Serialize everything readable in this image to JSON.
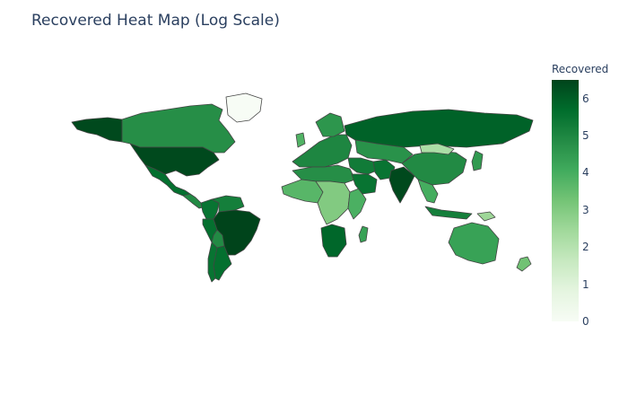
{
  "title": "Recovered Heat Map (Log Scale)",
  "colorbar": {
    "title": "Recovered",
    "ticks": [
      "0",
      "1",
      "2",
      "3",
      "4",
      "5",
      "6"
    ],
    "range": [
      0,
      6.5
    ],
    "colorscale": [
      "#f7fcf5",
      "#e5f5e0",
      "#c7e9c0",
      "#a1d99b",
      "#74c476",
      "#41ab5d",
      "#238b45",
      "#006d2c",
      "#00441b"
    ]
  },
  "border_color": "#444444",
  "regions": [
    {
      "name": "Alaska",
      "value": 6.4
    },
    {
      "name": "Canada",
      "value": 4.8
    },
    {
      "name": "Greenland",
      "value": 0
    },
    {
      "name": "USA",
      "value": 6.4
    },
    {
      "name": "Mexico",
      "value": 5.6
    },
    {
      "name": "Central America",
      "value": 4.9
    },
    {
      "name": "Colombia",
      "value": 5.5
    },
    {
      "name": "Venezuela",
      "value": 5.2
    },
    {
      "name": "Peru",
      "value": 5.6
    },
    {
      "name": "Brazil",
      "value": 6.5
    },
    {
      "name": "Bolivia",
      "value": 4.9
    },
    {
      "name": "Argentina",
      "value": 5.6
    },
    {
      "name": "Chile",
      "value": 5.5
    },
    {
      "name": "Europe",
      "value": 5.0
    },
    {
      "name": "Scandinavia",
      "value": 4.6
    },
    {
      "name": "UK",
      "value": 3.8
    },
    {
      "name": "Russia",
      "value": 5.9
    },
    {
      "name": "North Africa",
      "value": 4.8
    },
    {
      "name": "West Africa",
      "value": 3.7
    },
    {
      "name": "Central Africa",
      "value": 3.0
    },
    {
      "name": "East Africa",
      "value": 3.9
    },
    {
      "name": "South Africa",
      "value": 5.8
    },
    {
      "name": "Madagascar",
      "value": 4.3
    },
    {
      "name": "Middle East",
      "value": 5.3
    },
    {
      "name": "Saudi Arabia",
      "value": 5.5
    },
    {
      "name": "Iran",
      "value": 5.5
    },
    {
      "name": "Central Asia",
      "value": 4.7
    },
    {
      "name": "India",
      "value": 6.4
    },
    {
      "name": "China",
      "value": 4.9
    },
    {
      "name": "Mongolia",
      "value": 2.2
    },
    {
      "name": "Southeast Asia",
      "value": 4.0
    },
    {
      "name": "Indonesia",
      "value": 5.2
    },
    {
      "name": "Japan",
      "value": 4.5
    },
    {
      "name": "Australia",
      "value": 4.3
    },
    {
      "name": "New Zealand",
      "value": 3.3
    },
    {
      "name": "Papua New Guinea",
      "value": 2.5
    }
  ]
}
